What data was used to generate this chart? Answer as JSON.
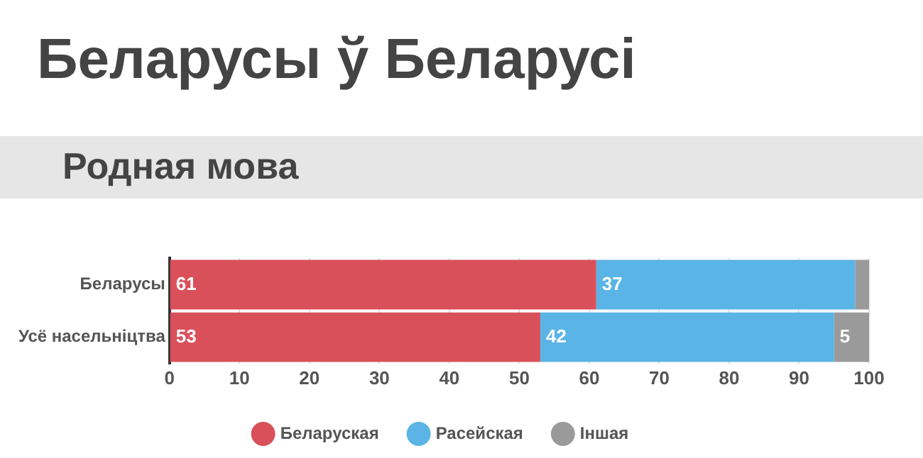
{
  "chart_data": {
    "type": "bar",
    "orientation": "horizontal",
    "stacked": true,
    "title": "Беларусы ў Беларусі",
    "subtitle": "Родная мова",
    "categories": [
      "Беларусы",
      "Усё насельніцтва"
    ],
    "series": [
      {
        "name": "Беларуская",
        "color": "#d9505a",
        "values": [
          61,
          53
        ],
        "value_labels": [
          "61",
          "53"
        ]
      },
      {
        "name": "Расейская",
        "color": "#5ab4e5",
        "values": [
          37,
          42
        ],
        "value_labels": [
          "37",
          "42"
        ]
      },
      {
        "name": "Іншая",
        "color": "#9a9a9a",
        "values": [
          2,
          5
        ],
        "value_labels": [
          null,
          "5"
        ]
      }
    ],
    "xlim": [
      0,
      100
    ],
    "xticks": [
      0,
      10,
      20,
      30,
      40,
      50,
      60,
      70,
      80,
      90,
      100
    ],
    "grid": "x",
    "legend": "bottom"
  }
}
